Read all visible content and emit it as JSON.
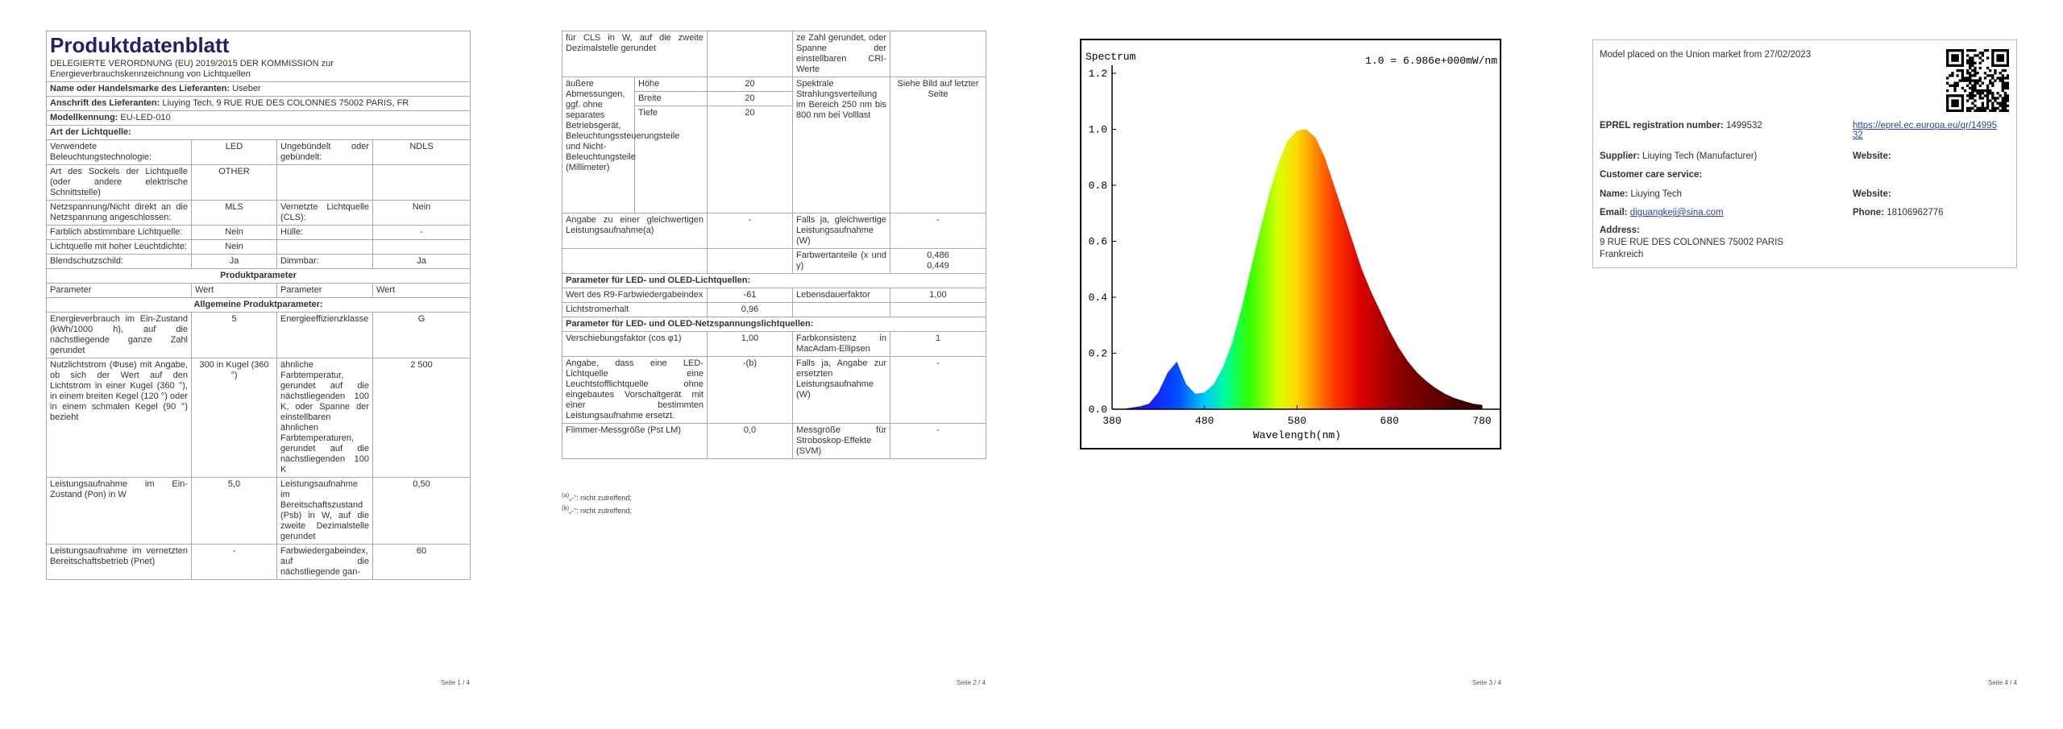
{
  "pages": [
    {
      "title": "Produktdatenblatt",
      "subtitle": "DELEGIERTE VERORDNUNG (EU) 2019/2015 DER KOMMISSION zur Energieverbrauchskennzeichnung von Lichtquellen",
      "info": [
        [
          "Name oder Handelsmarke des Lieferanten:",
          "Useber"
        ],
        [
          "Anschrift des Lieferanten:",
          "Liuying Tech, 9 RUE RUE DES COLONNES 75002 PARIS, FR"
        ],
        [
          "Modellkennung:",
          "EU-LED-010"
        ]
      ],
      "rows": [
        [
          "Art der Lichtquelle:"
        ],
        [
          "Verwendete Beleuchtungstechnologie:",
          "LED",
          "Ungebündelt oder gebündelt:",
          "NDLS"
        ],
        [
          "Art des Sockels der Lichtquelle (oder andere elektrische Schnittstelle)",
          "OTHER",
          null,
          null
        ],
        [
          "Netzspannung/Nicht direkt an die Netzspannung angeschlossen:",
          "MLS",
          "Vernetzte Lichtquelle (CLS):",
          "Nein"
        ],
        [
          "Farblich abstimmbare Lichtquelle:",
          "Nein",
          "Hülle:",
          "-"
        ],
        [
          "Lichtquelle mit hoher Leuchtdichte:",
          "Nein",
          null,
          null
        ],
        [
          "Blendschutzschild:",
          "Ja",
          "Dimmbar:",
          "Ja"
        ],
        [
          "Produktparameter"
        ],
        [
          "Parameter",
          "Wert",
          "Parameter",
          "Wert"
        ],
        [
          "Allgemeine Produktparameter:"
        ],
        [
          "Energieverbrauch im Ein-Zustand (kWh/1000 h), auf die nächstliegende ganze Zahl gerundet",
          "5",
          "Energieeffizienzklasse",
          "G"
        ],
        [
          "Nutzlichtstrom (Φuse) mit Angabe, ob sich der Wert auf den Lichtstrom in einer Kugel (360 °), in einem breiten Kegel (120 °) oder in einem schmalen Kegel (90 °) bezieht",
          "300 in Kugel (360 °)",
          "ähnliche Farbtemperatur, gerundet auf die nächstliegenden 100 K, oder Spanne der einstellbaren ähnlichen Farbtemperaturen, gerundet auf die nächstliegenden 100 K",
          "2 500"
        ],
        [
          "Leistungsaufnahme im Ein-Zustand (Pon) in W",
          "5,0",
          "Leistungsaufnahme im Bereitschaftszustand (Psb) in W, auf die zweite Dezimalstelle gerundet",
          "0,50"
        ],
        [
          "Leistungsaufnahme im vernetzten Bereitschaftsbetrieb (Pnet)",
          "-",
          "Farbwiedergabeindex, auf die nächstliegende gan-",
          "60"
        ]
      ],
      "footer": "Seite 1 / 4"
    },
    {
      "rows": [
        [
          "für CLS in W, auf die zweite Dezimalstelle gerundet",
          null,
          "ze Zahl gerundet, oder Spanne der einstellbaren CRI-Werte",
          null
        ],
        {
          "label": "äußere Abmessungen, ggf. ohne separates Betriebsgerät, Beleuchtungssteuerungsteile und Nicht-Beleuchtungsteile (Millimeter)",
          "items": [
            [
              "Höhe",
              "20"
            ],
            [
              "Breite",
              "20"
            ],
            [
              "Tiefe",
              "20"
            ]
          ],
          "param": "Spektrale Strahlungsverteilung im Bereich 250 nm bis 800 nm bei Volllast",
          "value": "Siehe Bild auf letzter Seite"
        },
        [
          "Angabe zu einer gleichwertigen Leistungsaufnahme(a)",
          "-",
          "Falls ja, gleichwertige Leistungsaufnahme (W)",
          "-"
        ],
        [
          null,
          null,
          "Farbwertanteile (x und y)",
          [
            "0,486",
            "0,449"
          ]
        ],
        [
          "Parameter für LED- und OLED-Lichtquellen:"
        ],
        [
          "Wert des R9-Farbwiedergabeindex",
          "-61",
          "Lebensdauerfaktor",
          "1,00"
        ],
        [
          "Lichtstromerhalt",
          "0,96",
          null,
          null
        ],
        [
          "Parameter für LED- und OLED-Netzspannungslichtquellen:"
        ],
        [
          "Verschiebungsfaktor (cos φ1)",
          "1,00",
          "Farbkonsistenz in MacAdam-Ellipsen",
          "1"
        ],
        [
          "Angabe, dass eine LED-Lichtquelle eine Leuchtstofflichtquelle ohne eingebautes Vorschaltgerät mit einer bestimmten Leistungsaufnahme ersetzt.",
          "-(b)",
          "Falls ja, Angabe zur ersetzten Leistungsaufnahme (W)",
          "-"
        ],
        [
          "Flimmer-Messgröße (Pst LM)",
          "0,0",
          "Messgröße für Stroboskop-Effekte (SVM)",
          "-"
        ]
      ],
      "footnotes": [
        [
          "(a)",
          "„-“: nicht zutreffend;"
        ],
        [
          "(b)",
          "„-“: nicht zutreffend;"
        ]
      ],
      "footer": "Seite 2 / 4"
    },
    {
      "chart": {
        "type": "area",
        "title": "Spectrum",
        "note": "1.0 = 6.986e+000mW/nm",
        "x_label": "Wavelength(nm)",
        "x": [
          380,
          390,
          400,
          410,
          420,
          430,
          440,
          450,
          460,
          470,
          480,
          490,
          500,
          510,
          520,
          530,
          540,
          550,
          560,
          570,
          580,
          590,
          600,
          610,
          620,
          630,
          640,
          650,
          660,
          670,
          680,
          690,
          700,
          710,
          720,
          730,
          740,
          750,
          760,
          770,
          780
        ],
        "values": [
          0,
          0,
          0.005,
          0.01,
          0.02,
          0.06,
          0.13,
          0.17,
          0.09,
          0.055,
          0.06,
          0.09,
          0.15,
          0.24,
          0.36,
          0.5,
          0.64,
          0.77,
          0.88,
          0.96,
          0.995,
          1.0,
          0.97,
          0.9,
          0.8,
          0.7,
          0.6,
          0.5,
          0.42,
          0.35,
          0.28,
          0.22,
          0.17,
          0.13,
          0.1,
          0.075,
          0.055,
          0.04,
          0.03,
          0.02,
          0.015
        ],
        "xlim": [
          380,
          780
        ],
        "ylim": [
          0,
          1.2
        ],
        "xticks": [
          380,
          480,
          580,
          680,
          780
        ],
        "yticks": [
          {
            "value": 0,
            "label": "0.0"
          },
          0.2,
          0.4,
          0.6,
          0.8,
          {
            "value": 1,
            "label": "1.0"
          },
          1.2
        ]
      },
      "footer": "Seite 3 / 4"
    },
    {
      "market": "Model placed on the Union market from 27/02/2023",
      "eprel": {
        "label": "EPREL registration number:",
        "value": "1499532",
        "link": "https://eprel.ec.europa.eu/qr/1499532"
      },
      "supplier": {
        "label": "Supplier:",
        "value": "Liuying Tech (Manufacturer)"
      },
      "supplier_website": "Website:",
      "customer_care": "Customer care service:",
      "name": {
        "label": "Name:",
        "value": "Liuying Tech"
      },
      "care_website": "Website:",
      "email": {
        "label": "Email:",
        "value": "diguangkeji@sina.com"
      },
      "phone": {
        "label": "Phone:",
        "value": "18106962776"
      },
      "address": {
        "label": "Address:",
        "lines": [
          "9 RUE RUE DES COLONNES 75002 PARIS",
          "Frankreich"
        ]
      },
      "footer": "Seite 4 / 4"
    }
  ]
}
